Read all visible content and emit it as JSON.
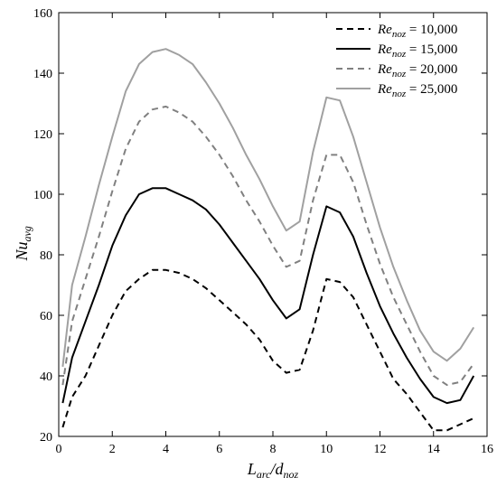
{
  "chart_data": {
    "type": "line",
    "xlabel": {
      "main": "L",
      "sub": "arc",
      "sep": "/",
      "main2": "d",
      "sub2": "noz"
    },
    "ylabel": {
      "main": "Nu",
      "sub": "avg"
    },
    "xlim": [
      0,
      16
    ],
    "ylim": [
      20,
      160
    ],
    "xticks": [
      0,
      2,
      4,
      6,
      8,
      10,
      12,
      14,
      16
    ],
    "yticks": [
      20,
      40,
      60,
      80,
      100,
      120,
      140,
      160
    ],
    "grid": false,
    "legend_position": "top-right",
    "series": [
      {
        "name": "10,000",
        "legend": {
          "main": "Re",
          "sub": "noz",
          "rest": " = 10,000"
        },
        "color": "#000000",
        "dash": "7,5",
        "x": [
          0.15,
          0.5,
          1.0,
          1.5,
          2.0,
          2.5,
          3.0,
          3.5,
          4.0,
          4.5,
          5.0,
          5.5,
          6.0,
          6.5,
          7.0,
          7.5,
          8.0,
          8.5,
          9.0,
          9.5,
          10.0,
          10.5,
          11.0,
          11.5,
          12.0,
          12.5,
          13.0,
          13.5,
          14.0,
          14.5,
          15.0,
          15.5
        ],
        "y": [
          23,
          33,
          40,
          50,
          60,
          68,
          72,
          75,
          75,
          74,
          72,
          69,
          65,
          61,
          57,
          52,
          45,
          41,
          42,
          55,
          72,
          71,
          66,
          57,
          48,
          39,
          34,
          28,
          22,
          22,
          24,
          26
        ]
      },
      {
        "name": "15,000",
        "legend": {
          "main": "Re",
          "sub": "noz",
          "rest": " = 15,000"
        },
        "color": "#000000",
        "dash": "",
        "x": [
          0.15,
          0.5,
          1.0,
          1.5,
          2.0,
          2.5,
          3.0,
          3.5,
          4.0,
          4.5,
          5.0,
          5.5,
          6.0,
          6.5,
          7.0,
          7.5,
          8.0,
          8.5,
          9.0,
          9.5,
          10.0,
          10.5,
          11.0,
          11.5,
          12.0,
          12.5,
          13.0,
          13.5,
          14.0,
          14.5,
          15.0,
          15.5
        ],
        "y": [
          31,
          46,
          58,
          70,
          83,
          93,
          100,
          102,
          102,
          100,
          98,
          95,
          90,
          84,
          78,
          72,
          65,
          59,
          62,
          80,
          96,
          94,
          86,
          74,
          63,
          54,
          46,
          39,
          33,
          31,
          32,
          40
        ]
      },
      {
        "name": "20,000",
        "legend": {
          "main": "Re",
          "sub": "noz",
          "rest": " = 20,000"
        },
        "color": "#808080",
        "dash": "7,5",
        "x": [
          0.15,
          0.5,
          1.0,
          1.5,
          2.0,
          2.5,
          3.0,
          3.5,
          4.0,
          4.5,
          5.0,
          5.5,
          6.0,
          6.5,
          7.0,
          7.5,
          8.0,
          8.5,
          9.0,
          9.5,
          10.0,
          10.5,
          11.0,
          11.5,
          12.0,
          12.5,
          13.0,
          13.5,
          14.0,
          14.5,
          15.0,
          15.5
        ],
        "y": [
          37,
          58,
          72,
          86,
          101,
          115,
          124,
          128,
          129,
          127,
          124,
          119,
          113,
          106,
          98,
          91,
          83,
          76,
          78,
          98,
          113,
          113,
          104,
          90,
          77,
          66,
          57,
          48,
          40,
          37,
          38,
          44
        ]
      },
      {
        "name": "25,000",
        "legend": {
          "main": "Re",
          "sub": "noz",
          "rest": " = 25,000"
        },
        "color": "#a0a0a0",
        "dash": "",
        "x": [
          0.15,
          0.5,
          1.0,
          1.5,
          2.0,
          2.5,
          3.0,
          3.5,
          4.0,
          4.5,
          5.0,
          5.5,
          6.0,
          6.5,
          7.0,
          7.5,
          8.0,
          8.5,
          9.0,
          9.5,
          10.0,
          10.5,
          11.0,
          11.5,
          12.0,
          12.5,
          13.0,
          13.5,
          14.0,
          14.5,
          15.0,
          15.5
        ],
        "y": [
          43,
          70,
          86,
          103,
          119,
          134,
          143,
          147,
          148,
          146,
          143,
          137,
          130,
          122,
          113,
          105,
          96,
          88,
          91,
          114,
          132,
          131,
          119,
          104,
          89,
          76,
          65,
          55,
          48,
          45,
          49,
          56
        ]
      }
    ]
  }
}
